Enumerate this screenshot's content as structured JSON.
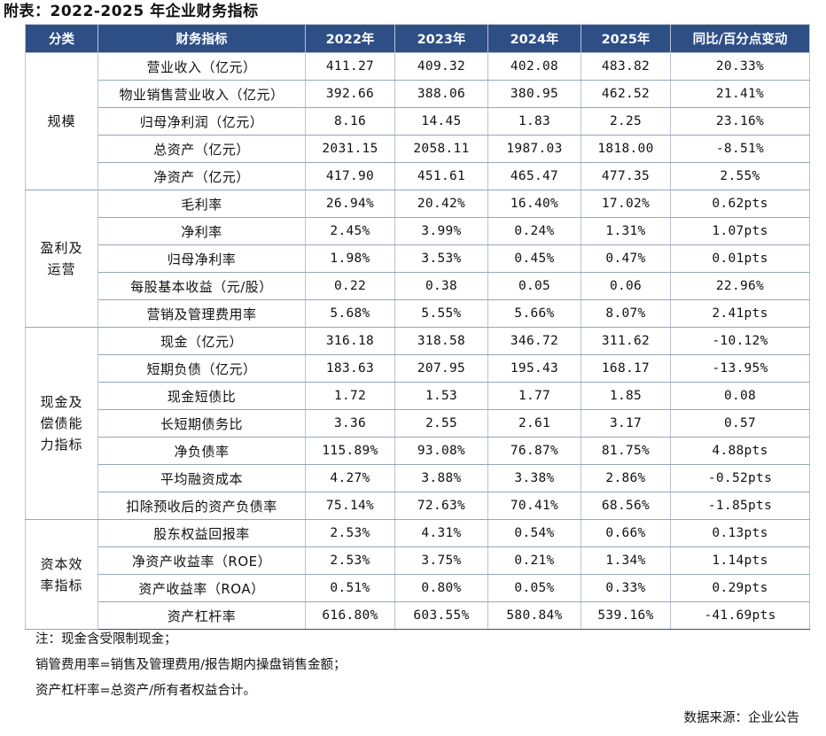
{
  "title": "附表：2022-2025 年企业财务指标",
  "header": [
    "分类",
    "财务指标",
    "2022年",
    "2023年",
    "2024年",
    "2025年",
    "同比/百分点变动"
  ],
  "groups": [
    {
      "category": "规模",
      "rows": [
        {
          "metric": "营业收入（亿元）",
          "values": [
            "411.27",
            "409.32",
            "402.08",
            "483.82",
            "20.33%"
          ]
        },
        {
          "metric": "物业销售营业收入（亿元）",
          "values": [
            "392.66",
            "388.06",
            "380.95",
            "462.52",
            "21.41%"
          ]
        },
        {
          "metric": "归母净利润（亿元）",
          "values": [
            "8.16",
            "14.45",
            "1.83",
            "2.25",
            "23.16%"
          ]
        },
        {
          "metric": "总资产（亿元）",
          "values": [
            "2031.15",
            "2058.11",
            "1987.03",
            "1818.00",
            "-8.51%"
          ]
        },
        {
          "metric": "净资产（亿元）",
          "values": [
            "417.90",
            "451.61",
            "465.47",
            "477.35",
            "2.55%"
          ]
        }
      ]
    },
    {
      "category": "盈利及\n运营",
      "rows": [
        {
          "metric": "毛利率",
          "values": [
            "26.94%",
            "20.42%",
            "16.40%",
            "17.02%",
            "0.62pts"
          ]
        },
        {
          "metric": "净利率",
          "values": [
            "2.45%",
            "3.99%",
            "0.24%",
            "1.31%",
            "1.07pts"
          ]
        },
        {
          "metric": "归母净利率",
          "values": [
            "1.98%",
            "3.53%",
            "0.45%",
            "0.47%",
            "0.01pts"
          ]
        },
        {
          "metric": "每股基本收益（元/股）",
          "values": [
            "0.22",
            "0.38",
            "0.05",
            "0.06",
            "22.96%"
          ]
        },
        {
          "metric": "营销及管理费用率",
          "values": [
            "5.68%",
            "5.55%",
            "5.66%",
            "8.07%",
            "2.41pts"
          ]
        }
      ]
    },
    {
      "category": "现金及\n偿债能\n力指标",
      "rows": [
        {
          "metric": "现金（亿元）",
          "values": [
            "316.18",
            "318.58",
            "346.72",
            "311.62",
            "-10.12%"
          ]
        },
        {
          "metric": "短期负债（亿元）",
          "values": [
            "183.63",
            "207.95",
            "195.43",
            "168.17",
            "-13.95%"
          ]
        },
        {
          "metric": "现金短债比",
          "values": [
            "1.72",
            "1.53",
            "1.77",
            "1.85",
            "0.08"
          ]
        },
        {
          "metric": "长短期债务比",
          "values": [
            "3.36",
            "2.55",
            "2.61",
            "3.17",
            "0.57"
          ]
        },
        {
          "metric": "净负债率",
          "values": [
            "115.89%",
            "93.08%",
            "76.87%",
            "81.75%",
            "4.88pts"
          ]
        },
        {
          "metric": "平均融资成本",
          "values": [
            "4.27%",
            "3.88%",
            "3.38%",
            "2.86%",
            "-0.52pts"
          ]
        },
        {
          "metric": "扣除预收后的资产负债率",
          "values": [
            "75.14%",
            "72.63%",
            "70.41%",
            "68.56%",
            "-1.85pts"
          ]
        }
      ]
    },
    {
      "category": "资本效\n率指标",
      "rows": [
        {
          "metric": "股东权益回报率",
          "values": [
            "2.53%",
            "4.31%",
            "0.54%",
            "0.66%",
            "0.13pts"
          ]
        },
        {
          "metric": "净资产收益率（ROE）",
          "values": [
            "2.53%",
            "3.75%",
            "0.21%",
            "1.34%",
            "1.14pts"
          ]
        },
        {
          "metric": "资产收益率（ROA）",
          "values": [
            "0.51%",
            "0.80%",
            "0.05%",
            "0.33%",
            "0.29pts"
          ]
        },
        {
          "metric": "资产杠杆率",
          "values": [
            "616.80%",
            "603.55%",
            "580.84%",
            "539.16%",
            "-41.69pts"
          ]
        }
      ]
    }
  ],
  "notes": [
    "注：现金含受限制现金；",
    "销管费用率=销售及管理费用/报告期内操盘销售金额；",
    "资产杠杆率=总资产/所有者权益合计。"
  ],
  "source": "数据来源：企业公告",
  "colors": {
    "header_bg": "#2e4e86",
    "header_text": "#ffffff"
  }
}
